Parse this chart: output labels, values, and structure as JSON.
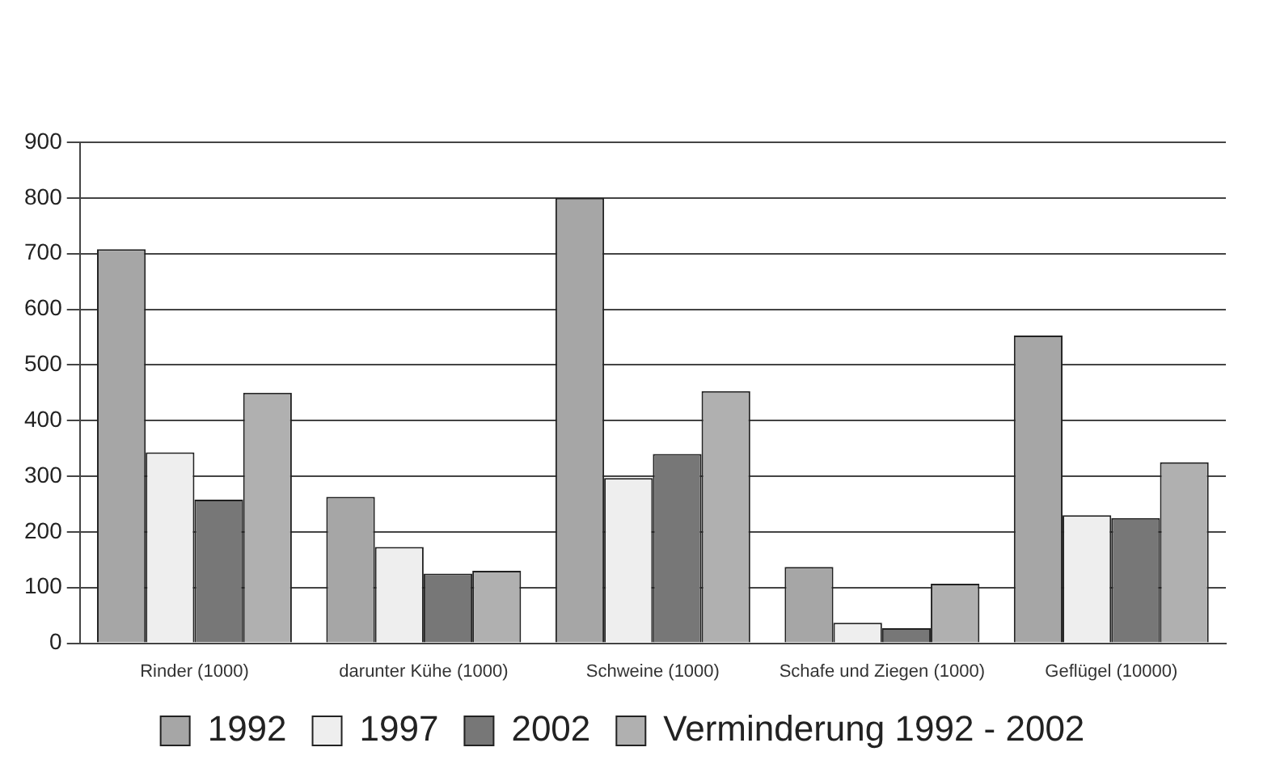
{
  "chart_data": {
    "type": "bar",
    "categories": [
      "Rinder (1000)",
      "darunter Kühe (1000)",
      "Schweine (1000)",
      "Schafe und Ziegen (1000)",
      "Geflügel (10000)"
    ],
    "series": [
      {
        "name": "1992",
        "color": "#a6a6a6",
        "values": [
          708,
          263,
          800,
          137,
          553
        ]
      },
      {
        "name": "1997",
        "color": "#eeeeee",
        "values": [
          343,
          173,
          297,
          37,
          230
        ]
      },
      {
        "name": "2002",
        "color": "#777777",
        "values": [
          258,
          125,
          340,
          27,
          225
        ]
      },
      {
        "name": "Verminderung 1992 - 2002",
        "color": "#b0b0b0",
        "values": [
          450,
          130,
          453,
          107,
          325
        ]
      }
    ],
    "ylim": [
      0,
      900
    ],
    "yticks": [
      0,
      100,
      200,
      300,
      400,
      500,
      600,
      700,
      800,
      900
    ],
    "grid": "y",
    "legend": "bottom"
  }
}
